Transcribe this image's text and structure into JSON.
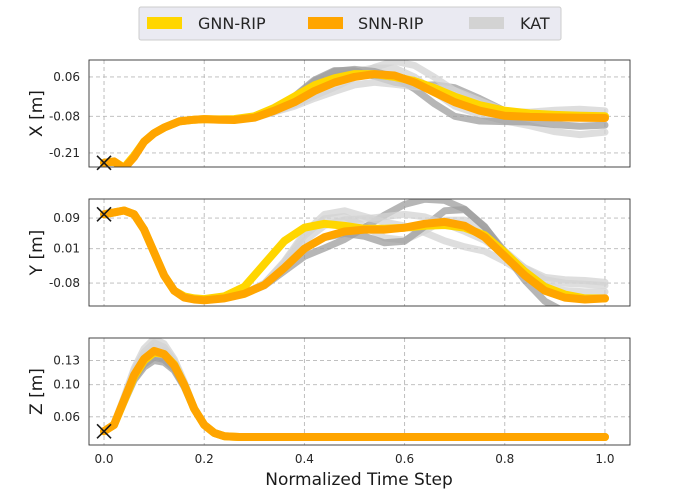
{
  "chart_data": {
    "type": "line",
    "legend": {
      "placement": "top-center",
      "entries": [
        {
          "name": "GNN-RIP",
          "color": "#ffd600"
        },
        {
          "name": "SNN-RIP",
          "color": "#ffa500"
        },
        {
          "name": "KAT",
          "color": "#d3d3d3"
        }
      ]
    },
    "xlabel": "Normalized Time Step",
    "xlim": [
      -0.03,
      1.05
    ],
    "xticks": [
      0.0,
      0.2,
      0.4,
      0.6,
      0.8,
      1.0
    ],
    "xtick_labels": [
      "0.0",
      "0.2",
      "0.4",
      "0.6",
      "0.8",
      "1.0"
    ],
    "grid": true,
    "start_marker": "x",
    "panels": [
      {
        "id": "x",
        "ylabel": "X [m]",
        "ylim": [
          -0.26,
          0.12
        ],
        "yticks": [
          0.06,
          -0.08,
          -0.21
        ],
        "ytick_labels": [
          "0.06",
          "-0.08",
          "-0.21"
        ],
        "start_point": [
          0.0,
          -0.245
        ],
        "series": [
          {
            "name": "GNN-RIP",
            "x": [
              0,
              0.02,
              0.04,
              0.06,
              0.08,
              0.1,
              0.12,
              0.15,
              0.18,
              0.2,
              0.23,
              0.26,
              0.3,
              0.34,
              0.38,
              0.42,
              0.46,
              0.5,
              0.54,
              0.58,
              0.62,
              0.66,
              0.7,
              0.75,
              0.8,
              0.85,
              0.9,
              0.95,
              1.0
            ],
            "y": [
              -0.245,
              -0.24,
              -0.262,
              -0.22,
              -0.17,
              -0.14,
              -0.12,
              -0.098,
              -0.092,
              -0.09,
              -0.091,
              -0.09,
              -0.08,
              -0.05,
              -0.01,
              0.03,
              0.055,
              0.07,
              0.07,
              0.06,
              0.045,
              0.02,
              -0.01,
              -0.04,
              -0.06,
              -0.07,
              -0.075,
              -0.078,
              -0.08
            ]
          },
          {
            "name": "SNN-RIP",
            "x": [
              0,
              0.02,
              0.04,
              0.06,
              0.08,
              0.1,
              0.12,
              0.15,
              0.18,
              0.2,
              0.23,
              0.26,
              0.3,
              0.34,
              0.38,
              0.42,
              0.46,
              0.5,
              0.54,
              0.58,
              0.62,
              0.66,
              0.7,
              0.75,
              0.8,
              0.85,
              0.9,
              0.95,
              1.0
            ],
            "y": [
              -0.245,
              -0.24,
              -0.265,
              -0.225,
              -0.17,
              -0.14,
              -0.12,
              -0.098,
              -0.092,
              -0.09,
              -0.092,
              -0.093,
              -0.085,
              -0.06,
              -0.03,
              0.01,
              0.04,
              0.06,
              0.07,
              0.065,
              0.04,
              0.005,
              -0.03,
              -0.06,
              -0.078,
              -0.082,
              -0.084,
              -0.085,
              -0.086
            ]
          }
        ]
      },
      {
        "id": "y",
        "ylabel": "Y [m]",
        "ylim": [
          -0.14,
          0.14
        ],
        "yticks": [
          0.09,
          0.01,
          -0.08
        ],
        "ytick_labels": [
          "0.09",
          "0.01",
          "-0.08"
        ],
        "start_point": [
          0.0,
          0.1
        ],
        "series": [
          {
            "name": "GNN-RIP",
            "x": [
              0,
              0.02,
              0.04,
              0.06,
              0.08,
              0.1,
              0.12,
              0.14,
              0.16,
              0.18,
              0.2,
              0.24,
              0.28,
              0.32,
              0.36,
              0.4,
              0.44,
              0.48,
              0.52,
              0.56,
              0.6,
              0.64,
              0.68,
              0.72,
              0.76,
              0.8,
              0.84,
              0.88,
              0.92,
              0.96,
              1.0
            ],
            "y": [
              0.1,
              0.105,
              0.11,
              0.1,
              0.06,
              0.0,
              -0.06,
              -0.1,
              -0.115,
              -0.12,
              -0.122,
              -0.115,
              -0.09,
              -0.03,
              0.03,
              0.065,
              0.075,
              0.07,
              0.062,
              0.062,
              0.065,
              0.07,
              0.072,
              0.065,
              0.045,
              0.0,
              -0.05,
              -0.09,
              -0.11,
              -0.12,
              -0.12
            ]
          },
          {
            "name": "SNN-RIP",
            "x": [
              0,
              0.02,
              0.04,
              0.06,
              0.08,
              0.1,
              0.12,
              0.14,
              0.16,
              0.18,
              0.2,
              0.24,
              0.28,
              0.32,
              0.36,
              0.4,
              0.44,
              0.48,
              0.52,
              0.56,
              0.6,
              0.64,
              0.68,
              0.72,
              0.76,
              0.8,
              0.84,
              0.88,
              0.92,
              0.96,
              1.0
            ],
            "y": [
              0.1,
              0.105,
              0.11,
              0.1,
              0.06,
              0.0,
              -0.06,
              -0.1,
              -0.118,
              -0.123,
              -0.125,
              -0.12,
              -0.108,
              -0.085,
              -0.04,
              0.01,
              0.04,
              0.055,
              0.06,
              0.06,
              0.065,
              0.075,
              0.08,
              0.07,
              0.04,
              -0.01,
              -0.06,
              -0.1,
              -0.118,
              -0.123,
              -0.12
            ]
          }
        ]
      },
      {
        "id": "z",
        "ylabel": "Z [m]",
        "ylim": [
          0.025,
          0.158
        ],
        "yticks": [
          0.13,
          0.1,
          0.06
        ],
        "ytick_labels": [
          "0.13",
          "0.10",
          "0.06"
        ],
        "start_point": [
          0.0,
          0.042
        ],
        "series": [
          {
            "name": "GNN-RIP",
            "x": [
              0,
              0.02,
              0.04,
              0.06,
              0.08,
              0.1,
              0.12,
              0.14,
              0.16,
              0.18,
              0.2,
              0.22,
              0.24,
              0.27,
              0.3,
              0.4,
              0.5,
              0.6,
              0.7,
              0.8,
              0.9,
              1.0
            ],
            "y": [
              0.042,
              0.05,
              0.08,
              0.11,
              0.13,
              0.14,
              0.138,
              0.125,
              0.1,
              0.07,
              0.05,
              0.04,
              0.036,
              0.035,
              0.035,
              0.035,
              0.035,
              0.035,
              0.035,
              0.035,
              0.035,
              0.035
            ]
          },
          {
            "name": "SNN-RIP",
            "x": [
              0,
              0.02,
              0.04,
              0.06,
              0.08,
              0.1,
              0.12,
              0.14,
              0.16,
              0.18,
              0.2,
              0.22,
              0.24,
              0.27,
              0.3,
              0.4,
              0.5,
              0.6,
              0.7,
              0.8,
              0.9,
              1.0
            ],
            "y": [
              0.042,
              0.05,
              0.081,
              0.112,
              0.132,
              0.142,
              0.138,
              0.124,
              0.1,
              0.07,
              0.05,
              0.04,
              0.036,
              0.035,
              0.035,
              0.035,
              0.035,
              0.035,
              0.035,
              0.035,
              0.035,
              0.035
            ]
          }
        ]
      }
    ]
  }
}
